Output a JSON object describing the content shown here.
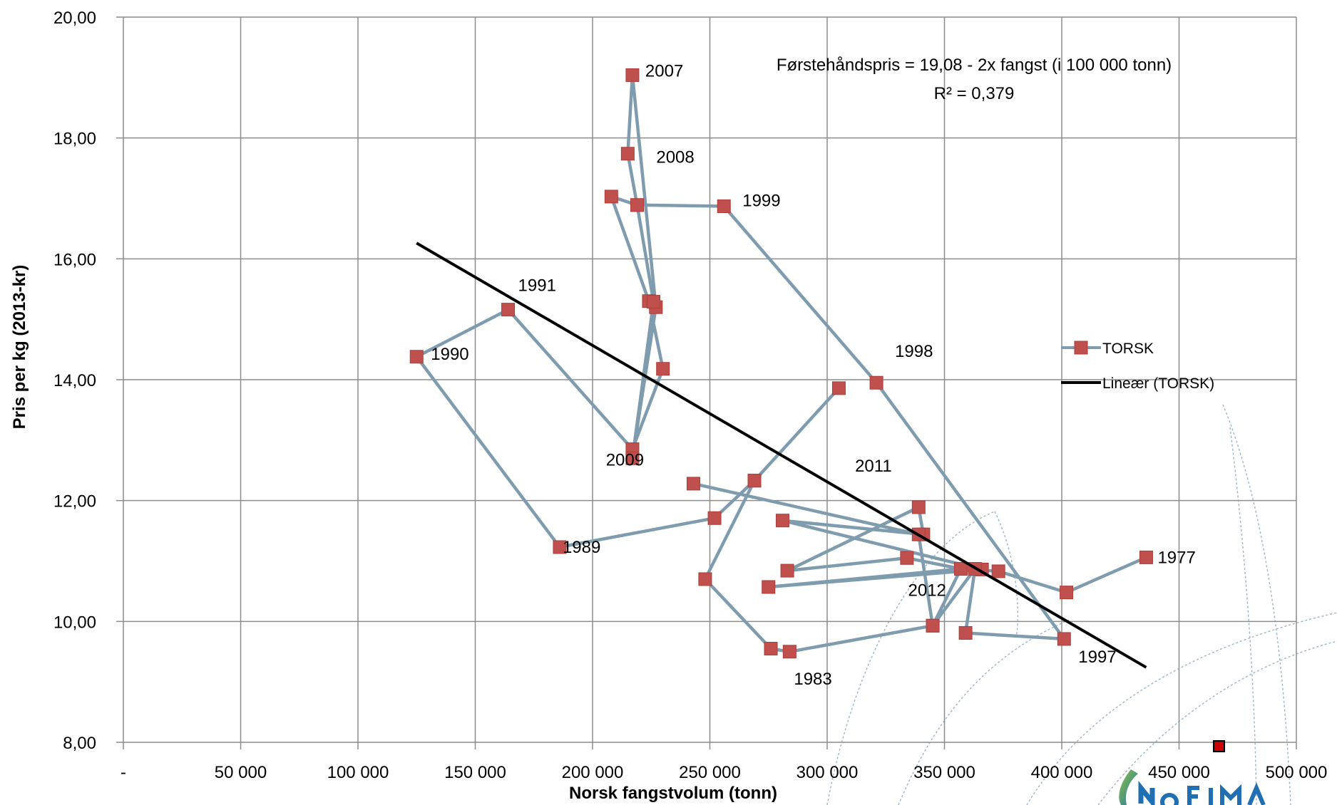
{
  "chart_data": {
    "type": "scatter",
    "title": "",
    "xlabel": "Norsk fangstvolum (tonn)",
    "ylabel": "Pris per kg (2013-kr)",
    "xlim": [
      0,
      500000
    ],
    "ylim": [
      8,
      20
    ],
    "grid": true,
    "x_ticks": [
      0,
      50000,
      100000,
      150000,
      200000,
      250000,
      300000,
      350000,
      400000,
      450000,
      500000
    ],
    "x_tick_labels": [
      "-",
      "50 000",
      "100 000",
      "150 000",
      "200 000",
      "250 000",
      "300 000",
      "350 000",
      "400 000",
      "450 000",
      "500 000"
    ],
    "y_ticks": [
      8,
      10,
      12,
      14,
      16,
      18,
      20
    ],
    "y_tick_labels": [
      "8,00",
      "10,00",
      "12,00",
      "14,00",
      "16,00",
      "18,00",
      "20,00"
    ],
    "legend_position": "right",
    "legend": [
      "TORSK",
      "Lineær (TORSK)"
    ],
    "colors": {
      "line": "#7f9caf",
      "marker": "#c0504d",
      "marker_stroke": "#b03c38",
      "trend": "#000000",
      "grid": "#8c8c8c"
    },
    "series": [
      {
        "name": "TORSK",
        "points": [
          [
            436000,
            11.06
          ],
          [
            402000,
            10.48
          ],
          [
            373000,
            10.83
          ],
          [
            357000,
            10.87
          ],
          [
            334000,
            11.05
          ],
          [
            283000,
            10.84
          ],
          [
            339000,
            11.89
          ],
          [
            341000,
            11.44
          ],
          [
            281000,
            11.67
          ],
          [
            366000,
            10.86
          ],
          [
            275000,
            10.57
          ],
          [
            357000,
            10.87
          ],
          [
            345000,
            9.93
          ],
          [
            284000,
            9.5
          ],
          [
            276000,
            9.55
          ],
          [
            248000,
            10.7
          ],
          [
            269000,
            12.33
          ],
          [
            305000,
            13.86
          ],
          [
            269000,
            12.33
          ],
          [
            252000,
            11.71
          ],
          [
            186000,
            11.23
          ],
          [
            125000,
            14.38
          ],
          [
            164000,
            15.16
          ],
          [
            217000,
            12.85
          ],
          [
            230000,
            14.18
          ],
          [
            224000,
            15.3
          ],
          [
            208000,
            17.03
          ],
          [
            219000,
            16.89
          ],
          [
            215000,
            17.74
          ],
          [
            217000,
            19.04
          ],
          [
            227000,
            15.2
          ],
          [
            217000,
            12.7
          ],
          [
            226000,
            15.29
          ],
          [
            219000,
            16.89
          ],
          [
            256000,
            16.87
          ],
          [
            321000,
            13.95
          ],
          [
            401000,
            9.71
          ],
          [
            359000,
            9.81
          ],
          [
            363000,
            10.87
          ],
          [
            345000,
            9.93
          ],
          [
            339000,
            11.44
          ],
          [
            243000,
            12.28
          ]
        ]
      }
    ],
    "point_labels": [
      {
        "text": "1977",
        "x": 436000,
        "y": 11.06
      },
      {
        "text": "1983",
        "x": 284000,
        "y": 9.5
      },
      {
        "text": "1989",
        "x": 186000,
        "y": 11.23
      },
      {
        "text": "1990",
        "x": 125000,
        "y": 14.38
      },
      {
        "text": "1991",
        "x": 164000,
        "y": 15.16
      },
      {
        "text": "1997",
        "x": 401000,
        "y": 9.71
      },
      {
        "text": "1998",
        "x": 321000,
        "y": 13.95
      },
      {
        "text": "1999",
        "x": 256000,
        "y": 16.87
      },
      {
        "text": "2007",
        "x": 217000,
        "y": 19.04
      },
      {
        "text": "2008",
        "x": 215000,
        "y": 17.74
      },
      {
        "text": "2009",
        "x": 230000,
        "y": 12.33
      },
      {
        "text": "2011",
        "x": 321000,
        "y": 11.9
      },
      {
        "text": "2012",
        "x": 357000,
        "y": 10.87
      }
    ],
    "trendline": {
      "name": "Lineær (TORSK)",
      "x": [
        125000,
        436000
      ],
      "y": [
        16.26,
        9.24
      ]
    },
    "annotation": [
      "Førstehåndspris = 19,08 - 2x fangst (i 100 000 tonn)",
      "R² = 0,379"
    ]
  }
}
